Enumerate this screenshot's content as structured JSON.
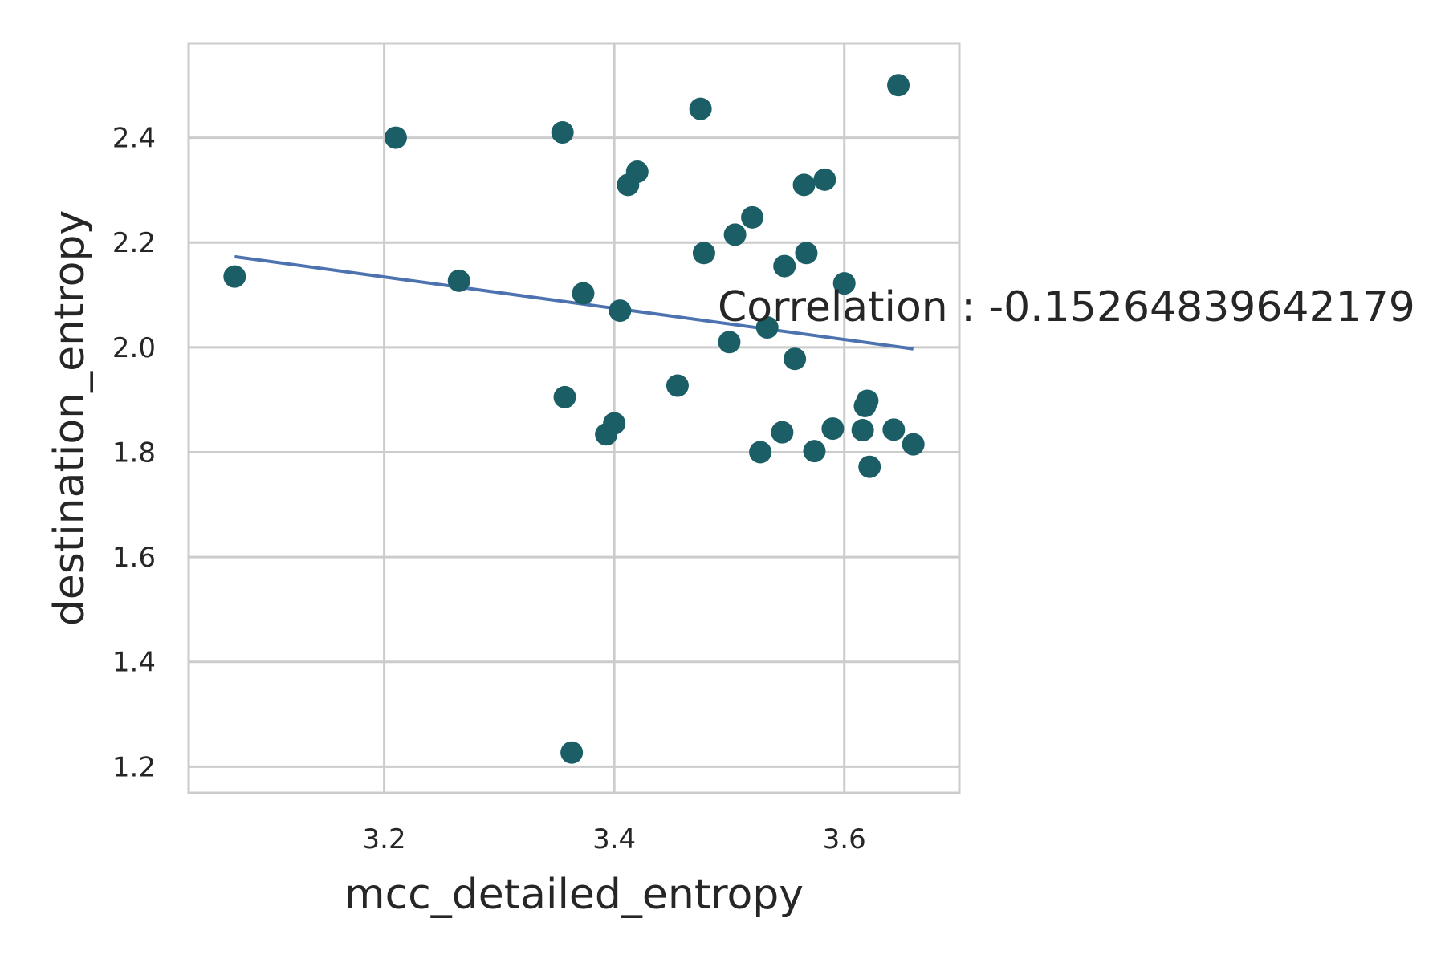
{
  "chart_data": {
    "type": "scatter",
    "xlabel": "mcc_detailed_entropy",
    "ylabel": "destination_entropy",
    "annotation": "Correlation : -0.15264839642179",
    "xlim": [
      3.03,
      3.7
    ],
    "ylim": [
      1.15,
      2.58
    ],
    "x_ticks": [
      3.2,
      3.4,
      3.6
    ],
    "x_tick_labels": [
      "3.2",
      "3.4",
      "3.6"
    ],
    "y_ticks": [
      1.2,
      1.4,
      1.6,
      1.8,
      2.0,
      2.2,
      2.4
    ],
    "y_tick_labels": [
      "1.2",
      "1.4",
      "1.6",
      "1.8",
      "2.0",
      "2.2",
      "2.4"
    ],
    "grid": true,
    "point_color": "#1b5e66",
    "line_color": "#4c72b0",
    "points": [
      {
        "x": 3.07,
        "y": 2.135
      },
      {
        "x": 3.21,
        "y": 2.4
      },
      {
        "x": 3.265,
        "y": 2.127
      },
      {
        "x": 3.355,
        "y": 2.41
      },
      {
        "x": 3.357,
        "y": 1.905
      },
      {
        "x": 3.363,
        "y": 1.227
      },
      {
        "x": 3.373,
        "y": 2.103
      },
      {
        "x": 3.393,
        "y": 1.834
      },
      {
        "x": 3.4,
        "y": 1.855
      },
      {
        "x": 3.405,
        "y": 2.07
      },
      {
        "x": 3.412,
        "y": 2.31
      },
      {
        "x": 3.42,
        "y": 2.335
      },
      {
        "x": 3.455,
        "y": 1.927
      },
      {
        "x": 3.475,
        "y": 2.455
      },
      {
        "x": 3.478,
        "y": 2.18
      },
      {
        "x": 3.5,
        "y": 2.01
      },
      {
        "x": 3.505,
        "y": 2.215
      },
      {
        "x": 3.52,
        "y": 2.248
      },
      {
        "x": 3.527,
        "y": 1.8
      },
      {
        "x": 3.533,
        "y": 2.038
      },
      {
        "x": 3.546,
        "y": 1.838
      },
      {
        "x": 3.548,
        "y": 2.155
      },
      {
        "x": 3.557,
        "y": 1.978
      },
      {
        "x": 3.565,
        "y": 2.31
      },
      {
        "x": 3.567,
        "y": 2.18
      },
      {
        "x": 3.574,
        "y": 1.802
      },
      {
        "x": 3.583,
        "y": 2.32
      },
      {
        "x": 3.59,
        "y": 1.845
      },
      {
        "x": 3.6,
        "y": 2.122
      },
      {
        "x": 3.616,
        "y": 1.842
      },
      {
        "x": 3.618,
        "y": 1.888
      },
      {
        "x": 3.62,
        "y": 1.898
      },
      {
        "x": 3.622,
        "y": 1.772
      },
      {
        "x": 3.643,
        "y": 1.843
      },
      {
        "x": 3.647,
        "y": 2.5
      },
      {
        "x": 3.66,
        "y": 1.815
      }
    ],
    "regression_line": {
      "x": [
        3.07,
        3.66
      ],
      "y": [
        2.173,
        1.997
      ]
    }
  }
}
